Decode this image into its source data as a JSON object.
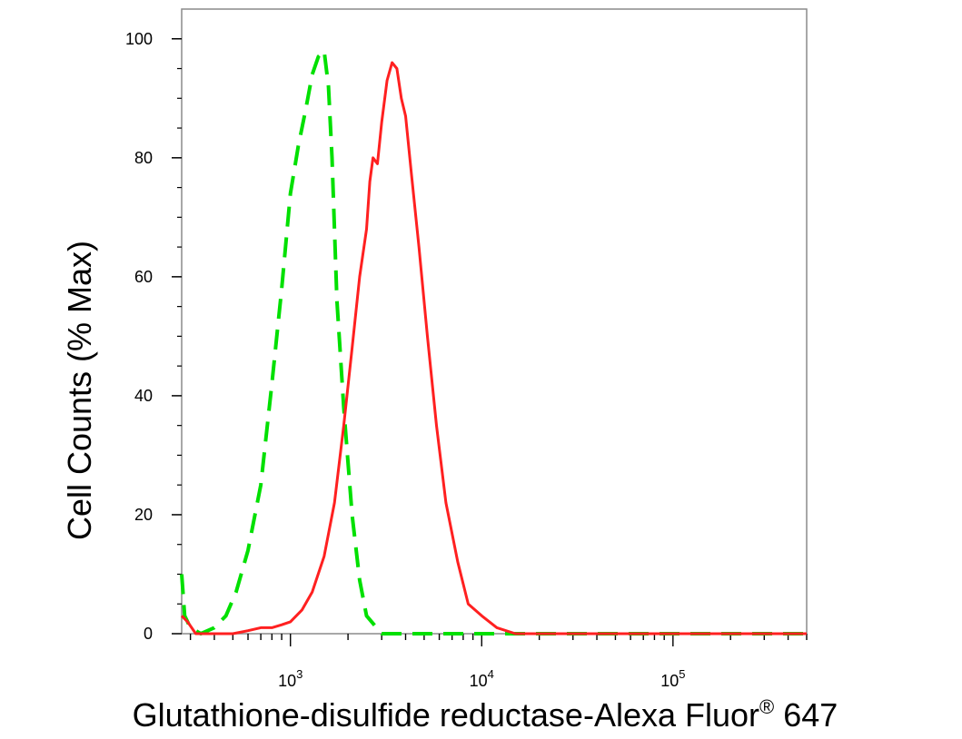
{
  "chart_data": {
    "type": "line",
    "xlabel": "Glutathione-disulfide reductase-Alexa Fluor",
    "xlabel_superscript": "®",
    "xlabel_suffix": " 647",
    "ylabel": "Cell Counts (% Max)",
    "x_scale": "log",
    "xlim": [
      270,
      500000
    ],
    "ylim": [
      0,
      105
    ],
    "y_ticks": [
      0,
      20,
      40,
      60,
      80,
      100
    ],
    "x_ticks": [
      {
        "value": 1000,
        "base": "10",
        "exp": "3"
      },
      {
        "value": 10000,
        "base": "10",
        "exp": "4"
      },
      {
        "value": 100000,
        "base": "10",
        "exp": "5"
      }
    ],
    "grid": false,
    "series": [
      {
        "color": "#00e000",
        "style": "dashed",
        "x": [
          270,
          280,
          300,
          340,
          400,
          460,
          520,
          600,
          700,
          800,
          900,
          1000,
          1100,
          1200,
          1300,
          1400,
          1500,
          1580,
          1650,
          1750,
          1900,
          2100,
          2300,
          2500,
          3000,
          4000,
          6000,
          10000,
          20000,
          50000,
          100000,
          200000,
          500000
        ],
        "y": [
          10,
          3,
          1,
          0,
          1,
          3,
          7,
          14,
          25,
          42,
          58,
          74,
          82,
          88,
          94,
          97,
          98,
          92,
          80,
          56,
          38,
          20,
          9,
          3,
          0,
          0,
          0,
          0,
          0,
          0,
          0,
          0,
          0
        ]
      },
      {
        "color": "#ff2020",
        "style": "solid",
        "x": [
          270,
          290,
          320,
          360,
          420,
          500,
          600,
          700,
          800,
          900,
          1000,
          1150,
          1300,
          1500,
          1700,
          1900,
          2100,
          2300,
          2500,
          2600,
          2700,
          2850,
          3000,
          3200,
          3400,
          3600,
          3800,
          4000,
          4300,
          4700,
          5200,
          5800,
          6500,
          7500,
          8500,
          10000,
          12000,
          15000,
          20000,
          50000,
          100000,
          500000
        ],
        "y": [
          3,
          2,
          0,
          0,
          0,
          0,
          0.5,
          1,
          1,
          1.5,
          2,
          4,
          7,
          13,
          22,
          35,
          48,
          60,
          68,
          76,
          80,
          79,
          86,
          93,
          96,
          95,
          90,
          87,
          77,
          65,
          50,
          35,
          22,
          12,
          5,
          3,
          1,
          0,
          0,
          0,
          0,
          0
        ]
      }
    ]
  }
}
